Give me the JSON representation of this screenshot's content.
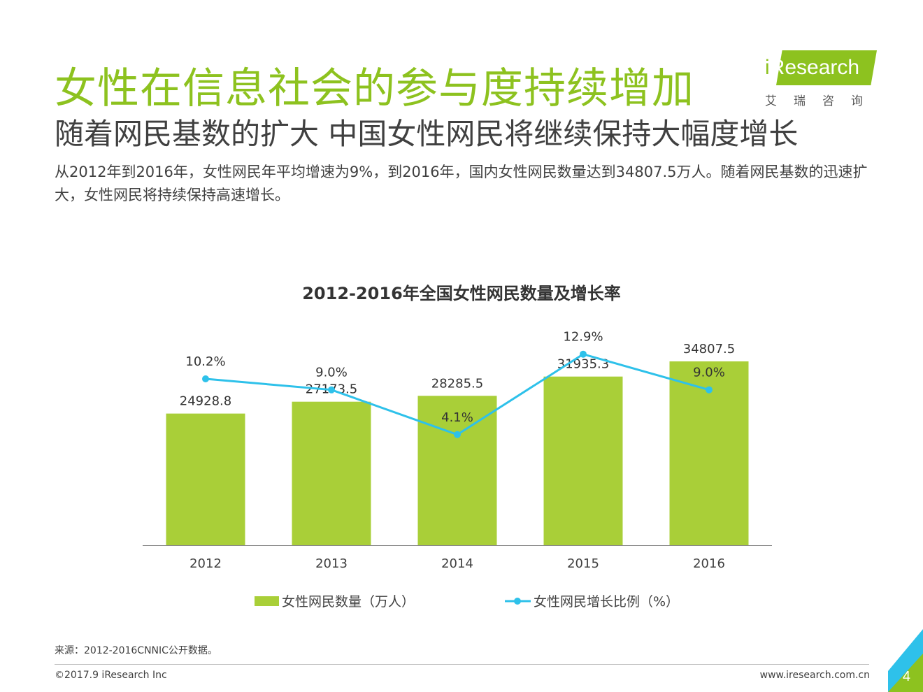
{
  "header": {
    "title": "女性在信息社会的参与度持续增加",
    "subtitle": "随着网民基数的扩大 中国女性网民将继续保持大幅度增长",
    "description": "从2012年到2016年，女性网民年平均增速为9%，到2016年，国内女性网民数量达到34807.5万人。随着网民基数的迅速扩大，女性网民将持续保持高速增长。"
  },
  "logo": {
    "i": "i",
    "text": "Research",
    "cn": "艾瑞咨询"
  },
  "colors": {
    "brand_green": "#8dc21f",
    "bar_green": "#a9cf38",
    "line_blue": "#2ec1ea",
    "corner_blue": "#2ec1ea"
  },
  "chart_data": {
    "type": "bar",
    "title": "2012-2016年全国女性网民数量及增长率",
    "categories": [
      "2012",
      "2013",
      "2014",
      "2015",
      "2016"
    ],
    "series": [
      {
        "name": "女性网民数量（万人）",
        "kind": "bar",
        "values": [
          24928.8,
          27173.5,
          28285.5,
          31935.3,
          34807.5
        ],
        "labels": [
          "24928.8",
          "27173.5",
          "28285.5",
          "31935.3",
          "34807.5"
        ]
      },
      {
        "name": "女性网民增长比例（%）",
        "kind": "line",
        "values": [
          10.2,
          9.0,
          4.1,
          12.9,
          9.0
        ],
        "labels": [
          "10.2%",
          "9.0%",
          "4.1%",
          "12.9%",
          "9.0%"
        ]
      }
    ],
    "ylim_bar": [
      0,
      45000
    ],
    "ylim_line": [
      -8,
      18
    ],
    "legend_position": "bottom",
    "grid": false
  },
  "footer": {
    "source": "来源：2012-2016CNNIC公开数据。",
    "copyright": "©2017.9 iResearch Inc",
    "website": "www.iresearch.com.cn",
    "page": "4"
  }
}
